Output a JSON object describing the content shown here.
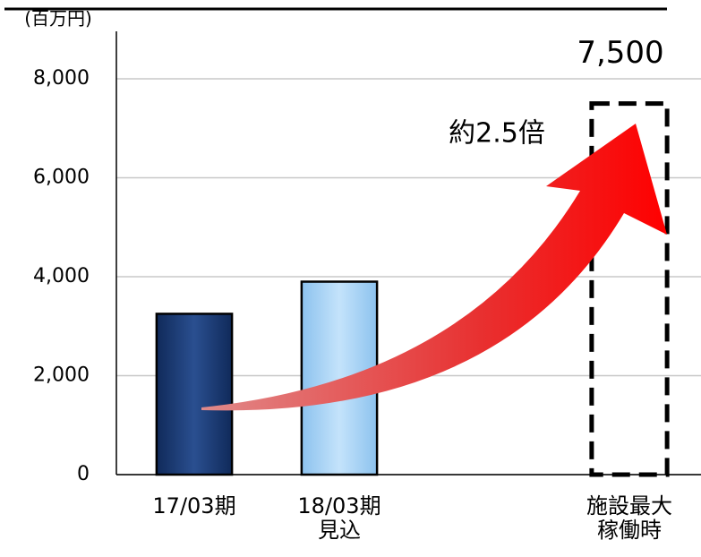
{
  "chart_data": {
    "type": "bar",
    "unit_label": "(百万円)",
    "annotation": "約2.5倍",
    "categories": [
      "17/03期",
      "18/03期\n見込",
      null,
      "施設最大\n稼働時"
    ],
    "values": [
      3250,
      3900,
      null,
      7500
    ],
    "value_labels": [
      null,
      null,
      null,
      "7,500"
    ],
    "colors": [
      "#1f3f7a",
      "#a9d4f5",
      null,
      "none"
    ],
    "styles": [
      "solid",
      "solid",
      null,
      "dashed"
    ],
    "ylim": [
      0,
      8000
    ],
    "yticks": [
      {
        "value": 0,
        "label": "0"
      },
      {
        "value": 2000,
        "label": "2,000"
      },
      {
        "value": 4000,
        "label": "4,000"
      },
      {
        "value": 6000,
        "label": "6,000"
      },
      {
        "value": 8000,
        "label": "8,000"
      }
    ],
    "grid": true
  }
}
